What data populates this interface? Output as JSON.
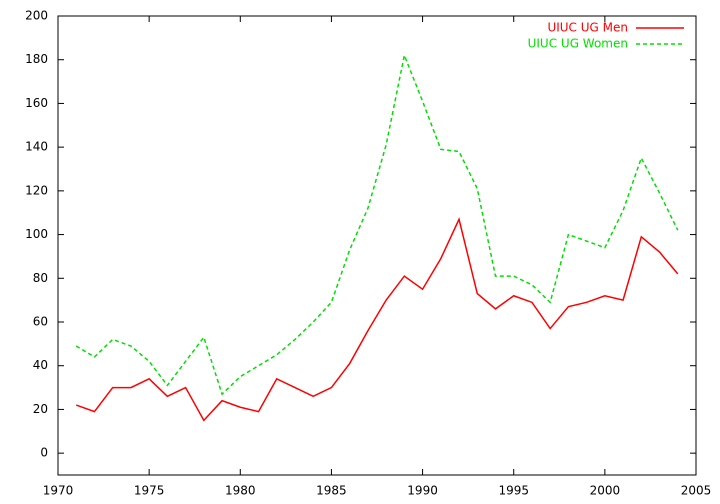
{
  "chart_data": {
    "type": "line",
    "x": [
      1971,
      1972,
      1973,
      1974,
      1975,
      1976,
      1977,
      1978,
      1979,
      1980,
      1981,
      1982,
      1983,
      1984,
      1985,
      1986,
      1987,
      1988,
      1989,
      1990,
      1991,
      1992,
      1993,
      1994,
      1995,
      1996,
      1997,
      1998,
      1999,
      2000,
      2001,
      2002,
      2003,
      2004
    ],
    "series": [
      {
        "name": "UIUC UG Men",
        "color": "#ff0000",
        "dash": false,
        "values": [
          22,
          19,
          30,
          30,
          34,
          26,
          30,
          15,
          24,
          21,
          19,
          34,
          30,
          26,
          30,
          41,
          56,
          70,
          81,
          75,
          89,
          107,
          73,
          66,
          72,
          69,
          57,
          67,
          69,
          72,
          70,
          99,
          92,
          82
        ]
      },
      {
        "name": "UIUC UG Women",
        "color": "#00e000",
        "dash": true,
        "values": [
          49,
          44,
          52,
          49,
          42,
          31,
          42,
          53,
          27,
          35,
          40,
          45,
          52,
          60,
          69,
          93,
          112,
          141,
          182,
          161,
          139,
          138,
          121,
          81,
          81,
          77,
          69,
          100,
          97,
          94,
          111,
          135,
          119,
          102
        ]
      }
    ],
    "xlim": [
      1970,
      2005
    ],
    "xticks": [
      1970,
      1975,
      1980,
      1985,
      1990,
      1995,
      2000,
      2005
    ],
    "ylim": [
      -10,
      200
    ],
    "yticks": [
      0,
      20,
      40,
      60,
      80,
      100,
      120,
      140,
      160,
      180,
      200
    ],
    "grid": false,
    "legend": "top-right"
  }
}
